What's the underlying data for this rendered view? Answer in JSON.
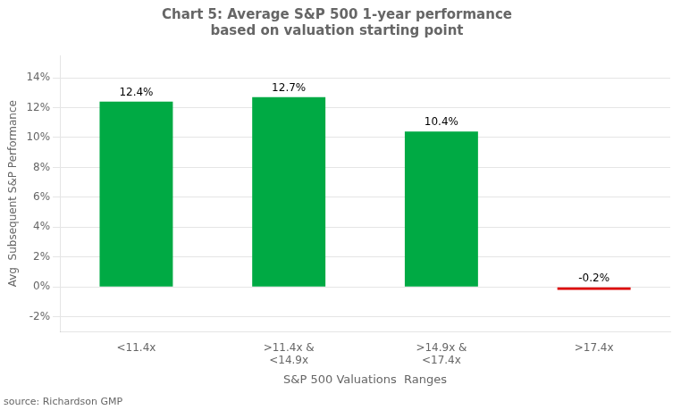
{
  "chart_data": {
    "type": "bar",
    "title": "Chart 5: Average S&P 500 1-year performance\nbased on valuation starting point",
    "xlabel": "S&P 500 Valuations  Ranges",
    "ylabel": "Avg  Subsequent S&P Performance",
    "categories": [
      "<11.4x",
      ">11.4x &\n<14.9x",
      ">14.9x &\n<17.4x",
      ">17.4x"
    ],
    "values": [
      12.4,
      12.7,
      10.4,
      -0.2
    ],
    "value_labels": [
      "12.4%",
      "12.7%",
      "10.4%",
      "-0.2%"
    ],
    "colors": [
      "#00aa44",
      "#00aa44",
      "#00aa44",
      "#dd0000"
    ],
    "ylim": [
      -3.0,
      15.5
    ],
    "yticks": [
      {
        "value": 14,
        "label": "14%"
      },
      {
        "value": 12,
        "label": "12%"
      },
      {
        "value": 10,
        "label": "10%"
      },
      {
        "value": 8,
        "label": "8%"
      },
      {
        "value": 6,
        "label": "6%"
      },
      {
        "value": 4,
        "label": "4%"
      },
      {
        "value": 2,
        "label": "2%"
      },
      {
        "value": 0,
        "label": "0%"
      },
      {
        "value": -2,
        "label": "-2%"
      }
    ],
    "grid": true,
    "data_labels": true,
    "annotations": [
      "source: Richardson GMP"
    ]
  }
}
